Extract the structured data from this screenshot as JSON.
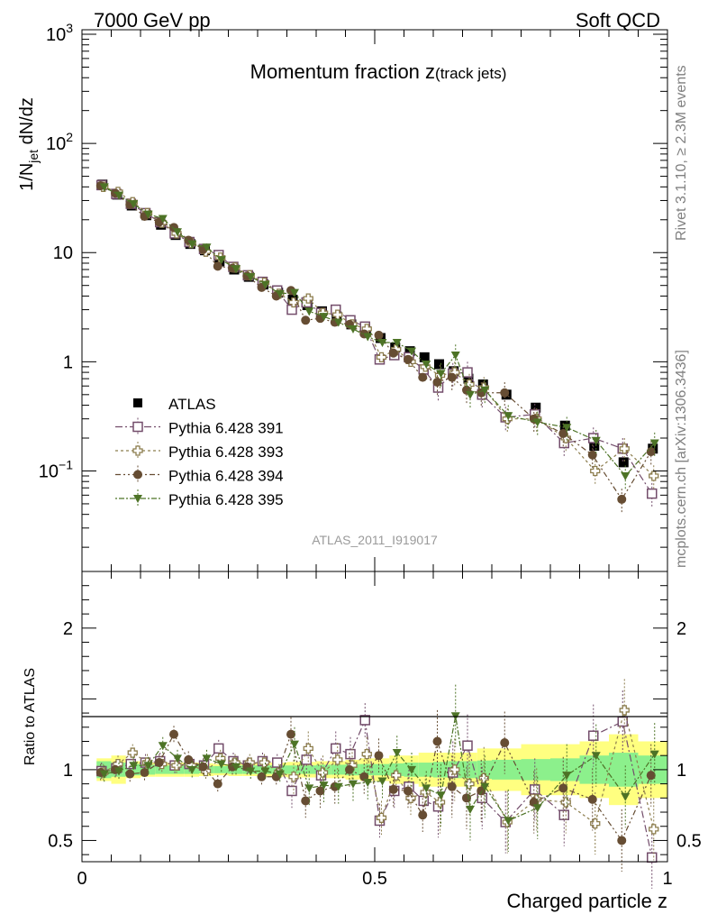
{
  "header": {
    "left": "7000 GeV pp",
    "right": "Soft QCD"
  },
  "side_labels": {
    "rivet": "Rivet 3.1.10, ≥ 2.3M events",
    "mcplots": "mcplots.cern.ch [arXiv:1306.3436]"
  },
  "colors": {
    "ATLAS": "#000000",
    "Pythia 6.428 391": "#734d6b",
    "Pythia 6.428 393": "#8c7d4d",
    "Pythia 6.428 394": "#664d33",
    "Pythia 6.428 395": "#4d7326",
    "band_inner": "#8cf08c",
    "band_outer": "#ffff80"
  },
  "chart_data": [
    {
      "type": "scatter",
      "title": "Momentum fraction z",
      "title_sub": "(track jets)",
      "watermark": "ATLAS_2011_I919017",
      "ylabel": "1/N_jet dN/dz",
      "yscale": "log",
      "xlim": [
        0,
        1
      ],
      "ylim": [
        0.012,
        1100
      ],
      "yticks": [
        {
          "v": 0.1,
          "label": "10",
          "sup": "−1"
        },
        {
          "v": 1,
          "label": "1",
          "sup": ""
        },
        {
          "v": 10,
          "label": "10",
          "sup": ""
        },
        {
          "v": 100,
          "label": "10",
          "sup": "2"
        },
        {
          "v": 1000,
          "label": "10",
          "sup": "3"
        }
      ],
      "legend": [
        "ATLAS",
        "Pythia 6.428 391",
        "Pythia 6.428 393",
        "Pythia 6.428 394",
        "Pythia 6.428 395"
      ],
      "legend_position": "bottom-left",
      "x": [
        0.035,
        0.06,
        0.085,
        0.11,
        0.135,
        0.16,
        0.185,
        0.21,
        0.235,
        0.26,
        0.285,
        0.31,
        0.335,
        0.36,
        0.385,
        0.41,
        0.435,
        0.46,
        0.485,
        0.51,
        0.535,
        0.56,
        0.585,
        0.61,
        0.635,
        0.66,
        0.685,
        0.725,
        0.775,
        0.825,
        0.875,
        0.925,
        0.975
      ],
      "series": [
        {
          "name": "ATLAS",
          "marker": "square-filled",
          "values": [
            42,
            34,
            27,
            22,
            18,
            14.5,
            12,
            10.5,
            8.3,
            7.0,
            6.0,
            5.1,
            4.3,
            3.7,
            3.3,
            2.9,
            2.6,
            2.2,
            1.9,
            1.65,
            1.35,
            1.25,
            1.1,
            0.95,
            0.82,
            0.7,
            0.62,
            0.5,
            0.38,
            0.26,
            0.17,
            0.12,
            0.16
          ]
        },
        {
          "name": "Pythia 6.428 391",
          "marker": "square-open",
          "values": [
            41.5,
            34.5,
            28,
            23,
            19,
            15,
            12.5,
            10.8,
            9.5,
            7.4,
            6.2,
            5.4,
            4.5,
            3.0,
            3.5,
            2.8,
            3.0,
            2.4,
            2.1,
            1.05,
            1.15,
            1.1,
            0.85,
            0.58,
            0.78,
            0.8,
            0.5,
            0.31,
            0.33,
            0.18,
            0.2,
            0.16,
            0.062
          ]
        },
        {
          "name": "Pythia 6.428 393",
          "marker": "cross-open",
          "values": [
            40,
            36,
            29,
            23,
            18.8,
            15,
            12.2,
            10.2,
            9.0,
            7.3,
            6.2,
            5.3,
            4.2,
            3.5,
            3.8,
            2.8,
            2.7,
            2.2,
            2.0,
            1.1,
            1.3,
            1.0,
            0.9,
            0.75,
            0.8,
            0.62,
            0.58,
            0.3,
            0.3,
            0.2,
            0.1,
            0.16,
            0.09
          ]
        },
        {
          "name": "Pythia 6.428 394",
          "marker": "circle-filled",
          "values": [
            41,
            35,
            27.5,
            21.5,
            19,
            17,
            13,
            10.7,
            7.5,
            7.2,
            6.1,
            4.8,
            4.0,
            4.5,
            2.4,
            2.5,
            2.3,
            2.2,
            1.8,
            1.75,
            1.2,
            1.05,
            0.72,
            0.65,
            0.72,
            0.55,
            0.52,
            0.52,
            0.3,
            0.22,
            0.14,
            0.055,
            0.15
          ]
        },
        {
          "name": "Pythia 6.428 395",
          "marker": "triangle-down-filled",
          "values": [
            40,
            33.5,
            28,
            22.5,
            20.5,
            15.5,
            12,
            11.2,
            8.6,
            7.1,
            6.0,
            5.1,
            4.2,
            4.3,
            2.9,
            2.6,
            2.3,
            2.0,
            1.7,
            1.5,
            1.5,
            1.25,
            0.95,
            0.78,
            1.15,
            0.5,
            0.55,
            0.32,
            0.28,
            0.25,
            0.19,
            0.09,
            0.18
          ]
        }
      ]
    },
    {
      "type": "scatter",
      "ylabel": "Ratio to ATLAS",
      "xlabel": "Charged particle z",
      "xlim": [
        0,
        1
      ],
      "ylim": [
        0.35,
        2.4
      ],
      "xticks": [
        {
          "v": 0,
          "label": "0"
        },
        {
          "v": 0.5,
          "label": "0.5"
        },
        {
          "v": 1,
          "label": "1"
        }
      ],
      "yticks": [
        {
          "v": 0.5,
          "label": "0.5"
        },
        {
          "v": 1,
          "label": "1"
        },
        {
          "v": 2,
          "label": "2"
        }
      ],
      "reference_line": 1,
      "band_edges": [
        0.025,
        0.05,
        0.075,
        0.1,
        0.125,
        0.15,
        0.175,
        0.2,
        0.225,
        0.25,
        0.275,
        0.3,
        0.325,
        0.35,
        0.375,
        0.4,
        0.425,
        0.45,
        0.475,
        0.5,
        0.525,
        0.55,
        0.575,
        0.6,
        0.625,
        0.65,
        0.675,
        0.7,
        0.75,
        0.8,
        0.85,
        0.9,
        0.95,
        1.0
      ],
      "band_inner_halfwidth": [
        0.06,
        0.05,
        0.04,
        0.035,
        0.03,
        0.03,
        0.03,
        0.025,
        0.025,
        0.03,
        0.03,
        0.03,
        0.03,
        0.03,
        0.03,
        0.035,
        0.035,
        0.04,
        0.04,
        0.04,
        0.045,
        0.05,
        0.05,
        0.055,
        0.06,
        0.06,
        0.065,
        0.07,
        0.075,
        0.08,
        0.1,
        0.12,
        0.1
      ],
      "band_outer_halfwidth": [
        0.08,
        0.1,
        0.06,
        0.05,
        0.05,
        0.05,
        0.05,
        0.045,
        0.04,
        0.045,
        0.045,
        0.05,
        0.05,
        0.055,
        0.055,
        0.06,
        0.06,
        0.07,
        0.08,
        0.08,
        0.1,
        0.1,
        0.12,
        0.12,
        0.12,
        0.12,
        0.15,
        0.15,
        0.18,
        0.18,
        0.2,
        0.25,
        0.2
      ],
      "series": [
        {
          "name": "Pythia 6.428 391",
          "marker": "square-open",
          "values": [
            0.99,
            1.01,
            1.04,
            1.05,
            1.06,
            1.03,
            1.04,
            1.03,
            1.15,
            1.06,
            1.03,
            1.06,
            1.05,
            0.85,
            1.07,
            0.96,
            1.15,
            1.11,
            1.35,
            0.64,
            0.85,
            0.88,
            0.78,
            0.74,
            0.98,
            1.17,
            0.8,
            0.63,
            0.86,
            0.68,
            1.24,
            1.34,
            0.38
          ]
        },
        {
          "name": "Pythia 6.428 393",
          "marker": "cross-open",
          "values": [
            0.98,
            1.04,
            1.12,
            1.05,
            1.04,
            1.03,
            1.03,
            0.99,
            1.08,
            1.05,
            1.05,
            1.05,
            0.98,
            0.95,
            1.15,
            0.98,
            1.07,
            1.03,
            1.11,
            0.66,
            0.96,
            0.8,
            0.84,
            0.77,
            1.0,
            0.9,
            0.94,
            0.63,
            0.79,
            0.77,
            0.62,
            1.42,
            0.58
          ]
        },
        {
          "name": "Pythia 6.428 394",
          "marker": "circle-filled",
          "values": [
            0.98,
            1.0,
            0.97,
            0.98,
            1.05,
            1.25,
            1.07,
            1.02,
            0.9,
            1.02,
            1.02,
            0.95,
            0.95,
            1.25,
            0.78,
            0.85,
            0.88,
            1.0,
            0.95,
            1.1,
            0.86,
            0.85,
            0.68,
            1.2,
            0.88,
            0.8,
            0.85,
            1.19,
            0.77,
            0.87,
            0.79,
            0.5,
            0.96
          ]
        },
        {
          "name": "Pythia 6.428 395",
          "marker": "triangle-down-filled",
          "values": [
            0.97,
            0.99,
            1.03,
            1.03,
            1.17,
            1.08,
            1.0,
            1.08,
            1.04,
            1.02,
            0.99,
            0.99,
            0.97,
            1.18,
            0.87,
            0.89,
            0.88,
            0.9,
            0.91,
            0.92,
            1.12,
            1.0,
            0.87,
            0.82,
            1.38,
            0.72,
            0.88,
            0.64,
            0.73,
            0.96,
            1.1,
            0.81,
            1.11
          ]
        }
      ]
    }
  ]
}
